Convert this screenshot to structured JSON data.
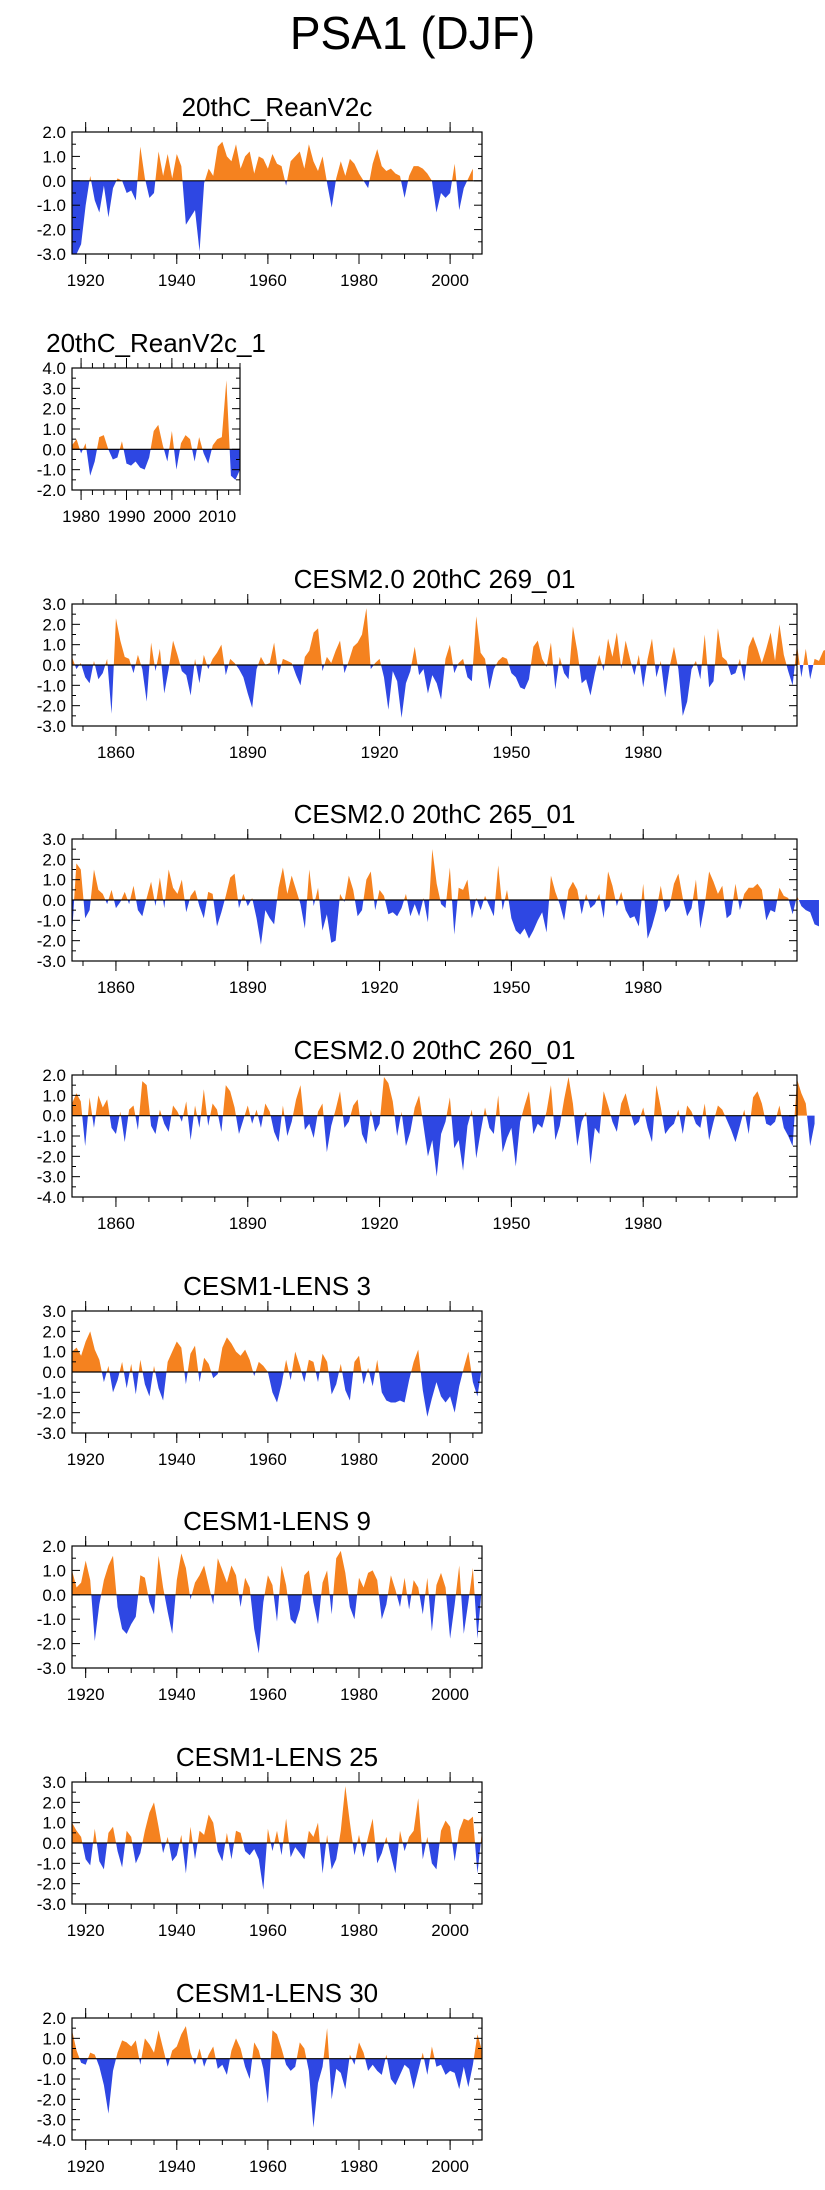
{
  "figure": {
    "title": "PSA1 (DJF)"
  },
  "colors": {
    "positive": "#f5821f",
    "negative": "#2e47e3",
    "axis": "#000000"
  },
  "chart_data": [
    {
      "type": "area",
      "title": "20thC_ReanV2c",
      "xlim": [
        1917,
        2007
      ],
      "ylim": [
        -3.0,
        2.0
      ],
      "yticks": [
        2.0,
        1.0,
        0.0,
        -1.0,
        -2.0,
        -3.0
      ],
      "ytick_labels": [
        "2.0",
        "1.0",
        "0.0",
        "-1.0",
        "-2.0",
        "-3.0"
      ],
      "xticks": [
        1920,
        1940,
        1960,
        1980,
        2000
      ],
      "xtick_labels": [
        "1920",
        "1940",
        "1960",
        "1980",
        "2000"
      ],
      "start": 1917,
      "values": [
        -3.0,
        -3.0,
        -2.6,
        -1.0,
        0.2,
        -0.8,
        -1.3,
        -0.2,
        -1.5,
        -0.3,
        0.1,
        0.0,
        -0.5,
        -0.4,
        -0.8,
        1.4,
        0.1,
        -0.7,
        -0.5,
        1.2,
        0.2,
        1.1,
        0.1,
        1.1,
        0.6,
        -1.8,
        -1.5,
        -1.2,
        -2.9,
        -0.1,
        0.5,
        0.2,
        1.4,
        1.6,
        1.0,
        0.8,
        1.5,
        0.5,
        1.0,
        1.2,
        0.3,
        1.0,
        0.9,
        0.5,
        1.1,
        0.7,
        0.6,
        -0.2,
        0.8,
        1.0,
        1.2,
        0.5,
        1.5,
        0.8,
        0.4,
        1.0,
        -0.1,
        -1.1,
        0.1,
        0.8,
        0.2,
        0.9,
        0.7,
        0.3,
        0.0,
        -0.3,
        0.7,
        1.3,
        0.6,
        0.4,
        0.5,
        0.3,
        0.2,
        -0.7,
        0.2,
        0.6,
        0.6,
        0.5,
        0.3,
        0.0,
        -1.3,
        -0.5,
        -0.7,
        -0.5,
        0.7,
        -1.2,
        -0.3,
        0.1,
        0.5
      ]
    },
    {
      "type": "area",
      "title": "20thC_ReanV2c_1",
      "xlim": [
        1978,
        2015
      ],
      "ylim": [
        -2.0,
        4.0
      ],
      "yticks": [
        4.0,
        3.0,
        2.0,
        1.0,
        0.0,
        -1.0,
        -2.0
      ],
      "ytick_labels": [
        "4.0",
        "3.0",
        "2.0",
        "1.0",
        "0.0",
        "-1.0",
        "-2.0"
      ],
      "xticks": [
        1980,
        1990,
        2000,
        2010
      ],
      "xtick_labels": [
        "1980",
        "1990",
        "2000",
        "2010"
      ],
      "start": 1978,
      "values": [
        0.2,
        0.5,
        -0.2,
        0.3,
        -1.3,
        -0.6,
        0.6,
        0.7,
        0.0,
        -0.5,
        -0.4,
        0.4,
        -0.7,
        -0.8,
        -0.6,
        -0.9,
        -1.0,
        -0.4,
        0.9,
        1.2,
        0.2,
        -0.6,
        0.9,
        -1.0,
        0.3,
        0.7,
        0.5,
        -0.6,
        0.6,
        -0.2,
        -0.7,
        0.2,
        0.5,
        0.6,
        3.4,
        -1.3,
        -1.5,
        -1.0
      ]
    },
    {
      "type": "area",
      "title": "CESM2.0 20thC 269_01",
      "xlim": [
        1850,
        2015
      ],
      "ylim": [
        -3.0,
        3.0
      ],
      "yticks": [
        3.0,
        2.0,
        1.0,
        0.0,
        -1.0,
        -2.0,
        -3.0
      ],
      "ytick_labels": [
        "3.0",
        "2.0",
        "1.0",
        "0.0",
        "-1.0",
        "-2.0",
        "-3.0"
      ],
      "xticks": [
        1860,
        1890,
        1920,
        1950,
        1980
      ],
      "xtick_labels": [
        "1860",
        "1890",
        "1920",
        "1950",
        "1980"
      ],
      "start": 1850,
      "values": [
        0.4,
        -0.2,
        0.1,
        -0.6,
        -0.9,
        0.2,
        -0.7,
        -0.4,
        0.3,
        -2.4,
        2.3,
        1.2,
        0.4,
        0.3,
        -0.4,
        0.5,
        -0.2,
        -1.8,
        1.1,
        -0.3,
        0.8,
        -1.4,
        -0.2,
        1.2,
        0.5,
        -0.3,
        -0.5,
        -1.5,
        0.3,
        -0.9,
        0.5,
        -0.2,
        0.3,
        0.6,
        1.0,
        -0.5,
        0.3,
        0.1,
        -0.2,
        -0.6,
        -1.4,
        -2.1,
        -0.2,
        0.4,
        0.0,
        0.1,
        1.1,
        -0.5,
        0.3,
        0.2,
        0.1,
        -0.5,
        -1.0,
        0.4,
        0.7,
        1.6,
        1.8,
        -0.3,
        0.4,
        0.1,
        0.7,
        1.2,
        -0.4,
        0.2,
        0.9,
        1.1,
        1.5,
        2.8,
        -0.2,
        0.1,
        0.3,
        -0.6,
        -2.2,
        -0.3,
        -0.8,
        -2.6,
        -0.9,
        -0.3,
        0.9,
        -0.5,
        -0.2,
        -1.4,
        -0.5,
        -0.9,
        -1.7,
        0.3,
        1.0,
        -0.4,
        0.1,
        0.3,
        -0.6,
        -0.8,
        2.4,
        0.6,
        0.3,
        -1.2,
        -0.2,
        0.2,
        0.4,
        0.3,
        -0.4,
        -0.6,
        -1.1,
        -1.2,
        -0.7,
        0.9,
        1.2,
        0.3,
        -0.1,
        1.1,
        -1.2,
        0.4,
        -0.4,
        -0.7,
        1.9,
        0.7,
        -0.9,
        -0.7,
        -1.5,
        -0.4,
        0.5,
        -0.3,
        1.3,
        0.4,
        1.6,
        -0.2,
        1.2,
        0.3,
        -0.5,
        0.5,
        -1.1,
        0.3,
        1.3,
        -0.6,
        0.2,
        -1.6,
        -0.1,
        0.9,
        -0.2,
        -2.5,
        -1.8,
        -0.2,
        0.2,
        -0.7,
        1.5,
        -1.1,
        -0.8,
        1.8,
        0.4,
        0.2,
        -0.5,
        -0.4,
        0.3,
        -0.8,
        0.9,
        1.4,
        0.8,
        0.1,
        0.8,
        1.6,
        0.2,
        2.0,
        0.5,
        -0.3,
        -1.0,
        1.0,
        -0.6,
        0.8,
        -0.7,
        0.3,
        0.2,
        0.7,
        0.8
      ]
    },
    {
      "type": "area",
      "title": "CESM2.0 20thC 265_01",
      "xlim": [
        1850,
        2015
      ],
      "ylim": [
        -3.0,
        3.0
      ],
      "yticks": [
        3.0,
        2.0,
        1.0,
        0.0,
        -1.0,
        -2.0,
        -3.0
      ],
      "ytick_labels": [
        "3.0",
        "2.0",
        "1.0",
        "0.0",
        "-1.0",
        "-2.0",
        "-3.0"
      ],
      "xticks": [
        1860,
        1890,
        1920,
        1950,
        1980
      ],
      "xtick_labels": [
        "1860",
        "1890",
        "1920",
        "1950",
        "1980"
      ],
      "start": 1850,
      "values": [
        -1.7,
        1.8,
        1.5,
        -0.9,
        -0.5,
        1.5,
        0.5,
        0.3,
        -0.2,
        0.5,
        -0.4,
        -0.1,
        0.4,
        -0.2,
        0.7,
        -0.5,
        -0.8,
        0.1,
        0.9,
        -0.3,
        1.1,
        -0.4,
        1.5,
        0.6,
        0.3,
        1.0,
        -0.6,
        0.2,
        0.5,
        -0.3,
        -0.9,
        0.4,
        0.3,
        -1.3,
        -0.6,
        0.2,
        1.1,
        1.3,
        -0.4,
        0.3,
        -0.3,
        0.1,
        -0.9,
        -2.2,
        -0.5,
        -0.9,
        -1.2,
        0.6,
        1.6,
        0.3,
        1.2,
        0.5,
        -0.2,
        -1.4,
        1.5,
        -0.3,
        0.6,
        -1.5,
        -0.7,
        -2.1,
        -2.0,
        0.3,
        -0.1,
        1.2,
        0.5,
        -0.8,
        -0.5,
        1.0,
        1.4,
        -0.5,
        0.5,
        0.2,
        -0.7,
        -0.6,
        -0.8,
        -0.4,
        0.3,
        -0.8,
        -0.2,
        -0.8,
        0.1,
        -1.1,
        2.5,
        0.8,
        -0.2,
        -0.4,
        1.6,
        -1.7,
        0.6,
        0.5,
        1.0,
        -0.9,
        0.1,
        -0.5,
        0.2,
        -0.3,
        -0.8,
        1.7,
        -0.5,
        0.5,
        -0.9,
        -1.5,
        -1.7,
        -1.4,
        -1.9,
        -1.5,
        -1.0,
        -0.6,
        -1.6,
        1.2,
        0.4,
        -0.2,
        -1.0,
        0.5,
        0.9,
        0.5,
        -0.7,
        0.3,
        -0.4,
        -0.2,
        0.3,
        -0.9,
        1.4,
        0.7,
        -0.3,
        0.4,
        -0.5,
        -0.9,
        -0.8,
        -1.3,
        0.8,
        -1.9,
        -1.3,
        -0.5,
        0.7,
        -0.6,
        -0.3,
        0.8,
        1.3,
        0.1,
        -0.8,
        -0.4,
        1.0,
        -1.4,
        -0.2,
        1.4,
        0.9,
        0.3,
        0.7,
        -0.9,
        -0.7,
        0.8,
        -0.5,
        0.3,
        0.6,
        0.6,
        0.8,
        0.5,
        -1.0,
        -0.5,
        -0.6,
        0.6,
        0.2,
        0.1,
        -0.7,
        0.2,
        -0.3,
        -0.5,
        -0.6,
        -1.2,
        -1.3
      ]
    },
    {
      "type": "area",
      "title": "CESM2.0 20thC 260_01",
      "xlim": [
        1850,
        2015
      ],
      "ylim": [
        -4.0,
        2.0
      ],
      "yticks": [
        2.0,
        1.0,
        0.0,
        -1.0,
        -2.0,
        -3.0,
        -4.0
      ],
      "ytick_labels": [
        "2.0",
        "1.0",
        "0.0",
        "-1.0",
        "-2.0",
        "-3.0",
        "-4.0"
      ],
      "xticks": [
        1860,
        1890,
        1920,
        1950,
        1980
      ],
      "xtick_labels": [
        "1860",
        "1890",
        "1920",
        "1950",
        "1980"
      ],
      "start": 1850,
      "values": [
        0.6,
        1.1,
        0.7,
        -1.5,
        0.9,
        -0.6,
        1.0,
        0.4,
        0.8,
        -0.6,
        -0.9,
        0.2,
        -1.3,
        0.3,
        0.5,
        -0.7,
        1.7,
        1.5,
        -0.5,
        -0.9,
        0.3,
        -0.4,
        -0.8,
        0.5,
        0.2,
        -0.3,
        0.7,
        -1.2,
        0.5,
        -0.6,
        1.3,
        -0.5,
        0.6,
        0.3,
        -0.8,
        1.5,
        1.2,
        0.4,
        -0.9,
        -0.2,
        0.5,
        -0.4,
        0.3,
        -0.6,
        0.6,
        0.2,
        -0.8,
        -1.3,
        0.5,
        -1.0,
        -0.3,
        0.8,
        1.5,
        -0.7,
        -0.4,
        -1.1,
        0.2,
        0.6,
        -1.8,
        -0.5,
        0.3,
        1.2,
        -0.6,
        -0.3,
        0.5,
        0.8,
        -0.9,
        -1.4,
        0.3,
        -0.8,
        -0.4,
        1.9,
        1.6,
        0.7,
        -1.0,
        0.2,
        -1.5,
        -0.8,
        0.4,
        1.0,
        -0.5,
        -2.0,
        -1.2,
        -3.0,
        -0.9,
        -0.3,
        0.9,
        -1.6,
        -1.2,
        -2.7,
        -0.5,
        0.3,
        -2.1,
        -0.8,
        0.4,
        -0.6,
        -0.9,
        1.0,
        -1.8,
        -1.1,
        -0.6,
        -2.5,
        -0.3,
        0.5,
        1.2,
        -0.9,
        -0.4,
        -0.6,
        0.2,
        1.5,
        -1.2,
        -0.5,
        0.8,
        1.9,
        0.6,
        -1.5,
        -0.3,
        0.2,
        -2.4,
        -0.6,
        -0.9,
        1.2,
        0.5,
        -0.3,
        -0.8,
        0.6,
        1.1,
        0.2,
        -0.5,
        -0.3,
        0.4,
        -0.6,
        -1.3,
        1.5,
        0.4,
        -0.9,
        -0.6,
        -0.4,
        0.3,
        -0.9,
        0.5,
        0.2,
        -0.4,
        -0.6,
        0.6,
        -1.2,
        -0.3,
        0.5,
        0.3,
        -0.2,
        -0.7,
        -1.3,
        -0.5,
        0.3,
        -0.9,
        0.9,
        1.2,
        0.6,
        -0.4,
        -0.5,
        -0.3,
        0.5,
        -0.6,
        -1.0,
        -1.5,
        1.8,
        1.1,
        0.6,
        -1.5,
        -0.4
      ]
    },
    {
      "type": "area",
      "title": "CESM1-LENS 3",
      "xlim": [
        1917,
        2007
      ],
      "ylim": [
        -3.0,
        3.0
      ],
      "yticks": [
        3.0,
        2.0,
        1.0,
        0.0,
        -1.0,
        -2.0,
        -3.0
      ],
      "ytick_labels": [
        "3.0",
        "2.0",
        "1.0",
        "0.0",
        "-1.0",
        "-2.0",
        "-3.0"
      ],
      "xticks": [
        1920,
        1940,
        1960,
        1980,
        2000
      ],
      "xtick_labels": [
        "1920",
        "1940",
        "1960",
        "1980",
        "2000"
      ],
      "start": 1917,
      "values": [
        1.0,
        1.2,
        0.8,
        1.5,
        2.0,
        1.1,
        0.6,
        -0.5,
        0.3,
        -1.0,
        -0.4,
        0.5,
        -0.8,
        0.4,
        -1.1,
        0.6,
        -0.6,
        -1.2,
        0.3,
        -0.8,
        -1.4,
        0.5,
        1.0,
        1.5,
        1.2,
        -0.6,
        0.9,
        1.3,
        -0.5,
        0.7,
        0.4,
        -0.3,
        -0.1,
        1.2,
        1.7,
        1.4,
        1.0,
        0.8,
        1.1,
        0.6,
        -0.2,
        0.5,
        0.3,
        0.0,
        -1.0,
        -1.5,
        -0.6,
        0.6,
        -0.4,
        1.0,
        0.3,
        -0.5,
        0.6,
        0.5,
        -0.5,
        0.9,
        0.5,
        -1.1,
        -0.6,
        0.4,
        -0.9,
        -1.4,
        0.5,
        0.8,
        -0.6,
        0.2,
        -0.7,
        0.6,
        -1.0,
        -1.4,
        -1.5,
        -1.5,
        -1.4,
        -1.5,
        -0.4,
        0.5,
        1.1,
        -0.9,
        -2.2,
        -1.3,
        -0.5,
        -1.2,
        -1.5,
        -1.2,
        -2.0,
        -0.7,
        0.2,
        1.0,
        -0.5,
        -1.2,
        0.3
      ]
    },
    {
      "type": "area",
      "title": "CESM1-LENS 9",
      "xlim": [
        1917,
        2007
      ],
      "ylim": [
        -3.0,
        2.0
      ],
      "yticks": [
        2.0,
        1.0,
        0.0,
        -1.0,
        -2.0,
        -3.0
      ],
      "ytick_labels": [
        "2.0",
        "1.0",
        "0.0",
        "-1.0",
        "-2.0",
        "-3.0"
      ],
      "xticks": [
        1920,
        1940,
        1960,
        1980,
        2000
      ],
      "xtick_labels": [
        "1920",
        "1940",
        "1960",
        "1980",
        "2000"
      ],
      "start": 1917,
      "values": [
        1.0,
        0.3,
        0.5,
        1.4,
        0.6,
        -1.9,
        -0.4,
        0.6,
        1.2,
        1.6,
        -0.5,
        -1.4,
        -1.6,
        -1.2,
        -0.9,
        0.8,
        0.7,
        -0.3,
        -0.8,
        1.6,
        0.3,
        -0.7,
        -1.6,
        0.6,
        1.7,
        1.1,
        -0.2,
        0.5,
        0.8,
        1.2,
        0.4,
        -0.4,
        1.5,
        1.0,
        0.5,
        1.2,
        0.8,
        -0.5,
        0.7,
        0.3,
        -1.4,
        -2.4,
        -0.3,
        0.8,
        0.4,
        -1.1,
        1.2,
        0.4,
        -1.0,
        -1.2,
        -0.6,
        0.8,
        1.0,
        -0.3,
        -1.2,
        0.5,
        1.0,
        -0.8,
        1.5,
        1.8,
        0.9,
        -0.5,
        -1.0,
        0.7,
        0.3,
        0.9,
        1.0,
        0.6,
        -1.0,
        -0.4,
        0.8,
        0.2,
        -0.5,
        0.7,
        -0.6,
        0.6,
        0.3,
        -0.8,
        0.7,
        -1.5,
        0.4,
        0.9,
        0.3,
        -1.8,
        -0.4,
        1.2,
        -1.6,
        -0.3,
        1.1,
        -1.8,
        0.4
      ]
    },
    {
      "type": "area",
      "title": "CESM1-LENS 25",
      "xlim": [
        1917,
        2007
      ],
      "ylim": [
        -3.0,
        3.0
      ],
      "yticks": [
        3.0,
        2.0,
        1.0,
        0.0,
        -1.0,
        -2.0,
        -3.0
      ],
      "ytick_labels": [
        "3.0",
        "2.0",
        "1.0",
        "0.0",
        "-1.0",
        "-2.0",
        "-3.0"
      ],
      "xticks": [
        1920,
        1940,
        1960,
        1980,
        2000
      ],
      "xtick_labels": [
        "1920",
        "1940",
        "1960",
        "1980",
        "2000"
      ],
      "start": 1917,
      "values": [
        1.0,
        0.6,
        0.3,
        -0.8,
        -1.1,
        0.7,
        -0.9,
        -1.3,
        0.5,
        0.8,
        -0.4,
        -1.2,
        0.6,
        0.3,
        -1.0,
        -0.5,
        0.6,
        1.5,
        2.0,
        0.8,
        -0.5,
        0.3,
        -0.9,
        -0.6,
        0.4,
        -1.5,
        0.8,
        -0.8,
        0.6,
        0.4,
        1.4,
        1.0,
        -0.4,
        -0.9,
        0.5,
        -0.8,
        0.6,
        0.5,
        -0.4,
        -0.6,
        -0.3,
        -0.8,
        -2.3,
        0.7,
        -0.4,
        0.6,
        -0.6,
        1.2,
        -0.7,
        -0.2,
        -0.5,
        -0.8,
        0.6,
        0.3,
        1.0,
        -1.5,
        0.4,
        -1.3,
        -0.8,
        0.6,
        2.8,
        1.0,
        -0.6,
        0.4,
        -0.7,
        0.3,
        1.2,
        -1.0,
        -0.5,
        0.3,
        -0.6,
        -1.5,
        0.6,
        -0.4,
        0.3,
        0.6,
        2.2,
        -0.8,
        0.3,
        -1.0,
        -1.3,
        0.6,
        1.1,
        0.8,
        -0.9,
        0.6,
        1.2,
        1.1,
        1.3,
        -1.5,
        0.6
      ]
    },
    {
      "type": "area",
      "title": "CESM1-LENS 30",
      "xlim": [
        1917,
        2007
      ],
      "ylim": [
        -4.0,
        2.0
      ],
      "yticks": [
        2.0,
        1.0,
        0.0,
        -1.0,
        -2.0,
        -3.0,
        -4.0
      ],
      "ytick_labels": [
        "2.0",
        "1.0",
        "0.0",
        "-1.0",
        "-2.0",
        "-3.0",
        "-4.0"
      ],
      "xticks": [
        1920,
        1940,
        1960,
        1980,
        2000
      ],
      "xtick_labels": [
        "1920",
        "1940",
        "1960",
        "1980",
        "2000"
      ],
      "start": 1917,
      "values": [
        1.4,
        0.4,
        -0.2,
        -0.3,
        0.3,
        0.2,
        -0.4,
        -1.3,
        -2.7,
        -0.6,
        0.3,
        0.9,
        0.8,
        0.6,
        0.9,
        -0.3,
        1.0,
        0.7,
        0.3,
        1.4,
        0.5,
        -0.4,
        0.4,
        0.6,
        1.2,
        1.6,
        0.3,
        -0.3,
        0.5,
        -0.4,
        0.2,
        0.6,
        -0.5,
        -0.3,
        -0.8,
        0.4,
        1.0,
        0.5,
        -0.4,
        -1.0,
        0.8,
        0.4,
        -0.5,
        -2.2,
        1.4,
        1.2,
        0.5,
        -0.3,
        -0.6,
        -0.4,
        0.8,
        0.5,
        -0.6,
        -3.4,
        -1.2,
        -0.4,
        1.5,
        -2.0,
        -0.5,
        -0.7,
        -1.5,
        0.2,
        -0.3,
        0.8,
        0.3,
        -0.6,
        -0.3,
        -0.6,
        -0.8,
        0.2,
        -1.0,
        -1.3,
        -0.8,
        -0.3,
        -0.5,
        -1.5,
        -0.6,
        0.3,
        -0.8,
        0.6,
        -0.4,
        -0.3,
        -0.8,
        -0.6,
        -0.7,
        -1.5,
        -0.4,
        -1.4,
        -0.3,
        1.2,
        0.4
      ]
    }
  ]
}
